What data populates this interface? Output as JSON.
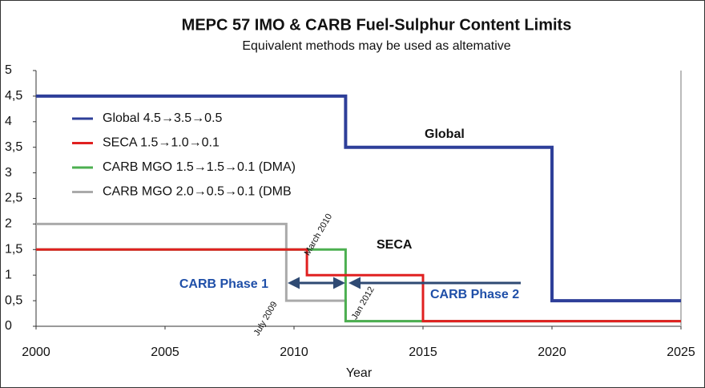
{
  "chart_data": {
    "type": "step-line",
    "title": "MEPC 57 IMO & CARB Fuel-Sulphur Content Limits",
    "subtitle": "Equivalent methods may be used as altemative",
    "x_label": "Year",
    "series": [
      {
        "name": "Global 4.5→3.5→0.5",
        "color": "#2e3f99",
        "x": [
          2000,
          2012,
          2012,
          2020,
          2020,
          2025
        ],
        "values": [
          4.5,
          4.5,
          3.5,
          3.5,
          0.5,
          0.5
        ]
      },
      {
        "name": "SECA 1.5→1.0→0.1",
        "color": "#e02020",
        "x": [
          2000,
          2010.5,
          2010.5,
          2015,
          2015,
          2025
        ],
        "values": [
          1.5,
          1.5,
          1.0,
          1.0,
          0.1,
          0.1
        ]
      },
      {
        "name": "CARB MGO 1.5→1.5→0.1 (DMA)",
        "color": "#4caf50",
        "x": [
          2000,
          2012,
          2012,
          2025
        ],
        "values": [
          1.5,
          1.5,
          0.1,
          0.1
        ]
      },
      {
        "name": "CARB MGO 2.0→0.5→0.1 (DMB",
        "color": "#aaaaaa",
        "x": [
          2000,
          2009.7,
          2009.7,
          2012,
          2012,
          2025
        ],
        "values": [
          2.0,
          2.0,
          0.5,
          0.5,
          0.1,
          0.1
        ]
      }
    ],
    "annotations": [
      "Global",
      "SECA",
      "CARB Phase 1",
      "CARB Phase 2",
      "March 2010",
      "July 2009",
      "Jan 2012"
    ],
    "xlim": [
      2000,
      2025
    ],
    "xticks": [
      2000,
      2005,
      2010,
      2015,
      2020,
      2025
    ],
    "ylim": [
      0,
      5
    ],
    "yticks": [
      0,
      {
        "value": 0.5,
        "label": "0,5"
      },
      1,
      {
        "value": 1.5,
        "label": "1,5"
      },
      2,
      {
        "value": 2.5,
        "label": "2,5"
      },
      3,
      {
        "value": 3.5,
        "label": "3,5"
      },
      4,
      {
        "value": 4.5,
        "label": "4,5"
      },
      5
    ],
    "legend": "upper left"
  }
}
